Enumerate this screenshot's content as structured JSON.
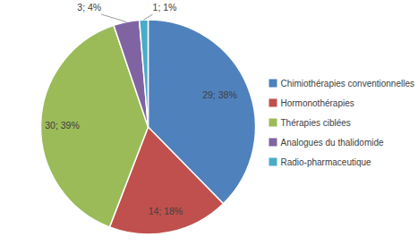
{
  "chart_data": {
    "type": "pie",
    "categories": [
      "Chimiothérapies conventionnelles",
      "Hormonothérapies",
      "Thérapies ciblées",
      "Analogues du thalidomide",
      "Radio-pharmaceutique"
    ],
    "values": [
      29,
      14,
      30,
      3,
      1
    ],
    "value_labels": [
      "29; 38%",
      "14; 18%",
      "30; 39%",
      "3; 4%",
      "1; 1%"
    ],
    "colors": [
      "#4f81bd",
      "#c0504d",
      "#9bbb59",
      "#8064a2",
      "#4bacc6"
    ],
    "data_labels": true,
    "legend": "right"
  }
}
